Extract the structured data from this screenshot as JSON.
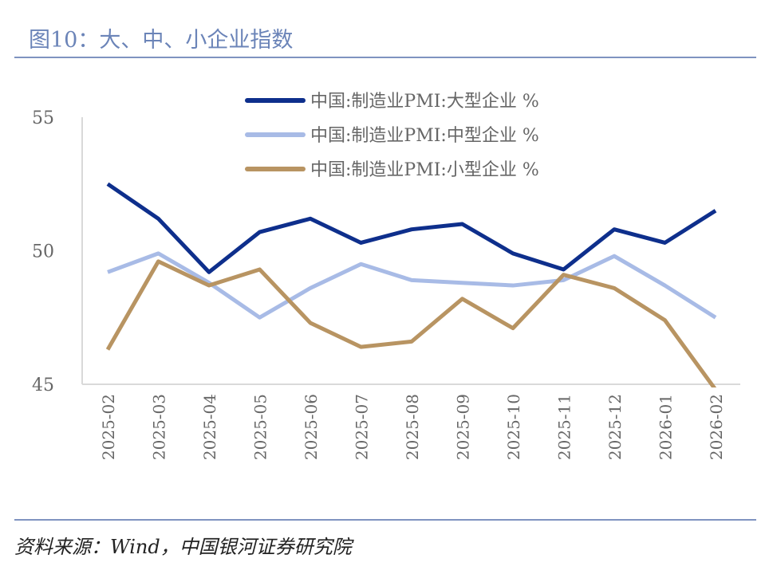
{
  "title": "图10：大、中、小企业指数",
  "source": "资料来源：Wind，中国银河证券研究院",
  "chart_data": {
    "type": "line",
    "categories": [
      "2025-02",
      "2025-03",
      "2025-04",
      "2025-05",
      "2025-06",
      "2025-07",
      "2025-08",
      "2025-09",
      "2025-10",
      "2025-11",
      "2025-12",
      "2026-01",
      "2026-02"
    ],
    "ylim": [
      45,
      55
    ],
    "yticks": [
      "45",
      "50",
      "55"
    ],
    "grid": false,
    "legend": "top-right",
    "series": [
      {
        "name": "中国:制造业PMI:大型企业 %",
        "color": "#0e2f8c",
        "values": [
          52.5,
          51.2,
          49.2,
          50.7,
          51.2,
          50.3,
          50.8,
          51.0,
          49.9,
          49.3,
          50.8,
          50.3,
          51.5
        ]
      },
      {
        "name": "中国:制造业PMI:中型企业 %",
        "color": "#a8bbe6",
        "values": [
          49.2,
          49.9,
          48.8,
          47.5,
          48.6,
          49.5,
          48.9,
          48.8,
          48.7,
          48.9,
          49.8,
          48.7,
          47.5
        ]
      },
      {
        "name": "中国:制造业PMI:小型企业 %",
        "color": "#b89462",
        "values": [
          46.3,
          49.6,
          48.7,
          49.3,
          47.3,
          46.4,
          46.6,
          48.2,
          47.1,
          49.1,
          48.6,
          47.4,
          44.8
        ]
      }
    ]
  }
}
